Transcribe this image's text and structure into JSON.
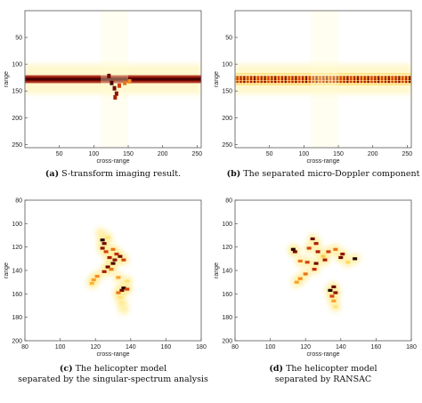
{
  "chart_data": [
    {
      "type": "heatmap",
      "panel": "a",
      "caption_letter": "(a)",
      "caption_lines": [
        "S-transform imaging result."
      ],
      "xlabel": "cross-range",
      "ylabel": "range",
      "xlim": [
        0,
        256
      ],
      "ylim": [
        256,
        0
      ],
      "xticks": [
        50,
        100,
        150,
        200,
        250
      ],
      "yticks": [
        50,
        100,
        150,
        200,
        250
      ],
      "colormap": "hot (white background)",
      "bands": [
        {
          "y_center": 128,
          "half_width": 5,
          "intensity": "strong"
        },
        {
          "y_center": 123,
          "half_width": 2,
          "intensity": "strong"
        },
        {
          "y_center": 133,
          "half_width": 2,
          "intensity": "strong"
        }
      ],
      "features": [
        {
          "x": 122,
          "y": 122,
          "value": 0.9
        },
        {
          "x": 126,
          "y": 135,
          "value": 0.95
        },
        {
          "x": 130,
          "y": 145,
          "value": 0.9
        },
        {
          "x": 133,
          "y": 155,
          "value": 0.85
        },
        {
          "x": 131,
          "y": 162,
          "value": 0.8
        },
        {
          "x": 137,
          "y": 140,
          "value": 0.7
        },
        {
          "x": 145,
          "y": 135,
          "value": 0.6
        },
        {
          "x": 152,
          "y": 132,
          "value": 0.55
        }
      ]
    },
    {
      "type": "heatmap",
      "panel": "b",
      "caption_letter": "(b)",
      "caption_lines": [
        "The separated micro-Doppler component"
      ],
      "xlabel": "cross-range",
      "ylabel": "range",
      "xlim": [
        0,
        256
      ],
      "ylim": [
        256,
        0
      ],
      "xticks": [
        50,
        100,
        150,
        200,
        250
      ],
      "yticks": [
        50,
        100,
        150,
        200,
        250
      ],
      "colormap": "hot (white background)",
      "bands": [
        {
          "y_center": 118,
          "half_width": 1,
          "intensity": "faint"
        },
        {
          "y_center": 124,
          "half_width": 2,
          "intensity": "dotted"
        },
        {
          "y_center": 128,
          "half_width": 2,
          "intensity": "dotted"
        },
        {
          "y_center": 133,
          "half_width": 2,
          "intensity": "dotted"
        },
        {
          "y_center": 138,
          "half_width": 1,
          "intensity": "faint"
        }
      ]
    },
    {
      "type": "heatmap",
      "panel": "c",
      "caption_letter": "(c)",
      "caption_lines": [
        "The helicopter model",
        "separated by the singular-spectrum analysis"
      ],
      "xlabel": "cross-range",
      "ylabel": "range",
      "xlim": [
        80,
        180
      ],
      "ylim": [
        200,
        80
      ],
      "xticks": [
        80,
        100,
        120,
        140,
        160,
        180
      ],
      "yticks": [
        80,
        100,
        120,
        140,
        160,
        180,
        200
      ],
      "colormap": "hot (white background)",
      "points": [
        {
          "x": 124,
          "y": 114,
          "v": 1.0
        },
        {
          "x": 125,
          "y": 117,
          "v": 0.9
        },
        {
          "x": 124,
          "y": 121,
          "v": 0.85
        },
        {
          "x": 126,
          "y": 124,
          "v": 0.7
        },
        {
          "x": 130,
          "y": 122,
          "v": 0.6
        },
        {
          "x": 132,
          "y": 126,
          "v": 0.75
        },
        {
          "x": 134,
          "y": 128,
          "v": 0.9
        },
        {
          "x": 128,
          "y": 129,
          "v": 0.8
        },
        {
          "x": 131,
          "y": 131,
          "v": 0.85
        },
        {
          "x": 136,
          "y": 131,
          "v": 0.7
        },
        {
          "x": 130,
          "y": 134,
          "v": 0.95
        },
        {
          "x": 127,
          "y": 137,
          "v": 0.9
        },
        {
          "x": 125,
          "y": 141,
          "v": 0.8
        },
        {
          "x": 129,
          "y": 139,
          "v": 0.6
        },
        {
          "x": 121,
          "y": 145,
          "v": 0.55
        },
        {
          "x": 119,
          "y": 148,
          "v": 0.5
        },
        {
          "x": 118,
          "y": 151,
          "v": 0.45
        },
        {
          "x": 133,
          "y": 146,
          "v": 0.5
        },
        {
          "x": 136,
          "y": 155,
          "v": 1.0
        },
        {
          "x": 135,
          "y": 157,
          "v": 0.9
        },
        {
          "x": 138,
          "y": 156,
          "v": 0.7
        },
        {
          "x": 133,
          "y": 159,
          "v": 0.6
        },
        {
          "x": 134,
          "y": 163,
          "v": 0.3
        },
        {
          "x": 135,
          "y": 168,
          "v": 0.25
        },
        {
          "x": 136,
          "y": 173,
          "v": 0.2
        },
        {
          "x": 123,
          "y": 108,
          "v": 0.2
        },
        {
          "x": 127,
          "y": 112,
          "v": 0.3
        },
        {
          "x": 138,
          "y": 149,
          "v": 0.3
        }
      ]
    },
    {
      "type": "heatmap",
      "panel": "d",
      "caption_letter": "(d)",
      "caption_lines": [
        "The helicopter model",
        "separated by RANSAC"
      ],
      "xlabel": "cross-range",
      "ylabel": "range",
      "xlim": [
        80,
        180
      ],
      "ylim": [
        200,
        80
      ],
      "xticks": [
        80,
        100,
        120,
        140,
        160,
        180
      ],
      "yticks": [
        80,
        100,
        120,
        140,
        160,
        180,
        200
      ],
      "colormap": "hot (white background)",
      "points": [
        {
          "x": 124,
          "y": 113,
          "v": 0.9
        },
        {
          "x": 126,
          "y": 117,
          "v": 0.8
        },
        {
          "x": 113,
          "y": 122,
          "v": 1.0
        },
        {
          "x": 114,
          "y": 124,
          "v": 0.9
        },
        {
          "x": 122,
          "y": 121,
          "v": 0.7
        },
        {
          "x": 127,
          "y": 124,
          "v": 0.8
        },
        {
          "x": 133,
          "y": 124,
          "v": 0.7
        },
        {
          "x": 137,
          "y": 122,
          "v": 0.6
        },
        {
          "x": 141,
          "y": 126,
          "v": 0.85
        },
        {
          "x": 140,
          "y": 129,
          "v": 0.9
        },
        {
          "x": 148,
          "y": 130,
          "v": 1.0
        },
        {
          "x": 131,
          "y": 131,
          "v": 0.8
        },
        {
          "x": 126,
          "y": 134,
          "v": 0.9
        },
        {
          "x": 121,
          "y": 133,
          "v": 0.7
        },
        {
          "x": 117,
          "y": 132,
          "v": 0.6
        },
        {
          "x": 125,
          "y": 139,
          "v": 0.75
        },
        {
          "x": 120,
          "y": 143,
          "v": 0.6
        },
        {
          "x": 117,
          "y": 147,
          "v": 0.55
        },
        {
          "x": 115,
          "y": 150,
          "v": 0.5
        },
        {
          "x": 136,
          "y": 154,
          "v": 0.9
        },
        {
          "x": 134,
          "y": 157,
          "v": 1.0
        },
        {
          "x": 137,
          "y": 159,
          "v": 0.85
        },
        {
          "x": 135,
          "y": 162,
          "v": 0.7
        },
        {
          "x": 136,
          "y": 166,
          "v": 0.5
        },
        {
          "x": 137,
          "y": 171,
          "v": 0.3
        },
        {
          "x": 130,
          "y": 128,
          "v": 0.4
        },
        {
          "x": 144,
          "y": 133,
          "v": 0.35
        }
      ]
    }
  ]
}
